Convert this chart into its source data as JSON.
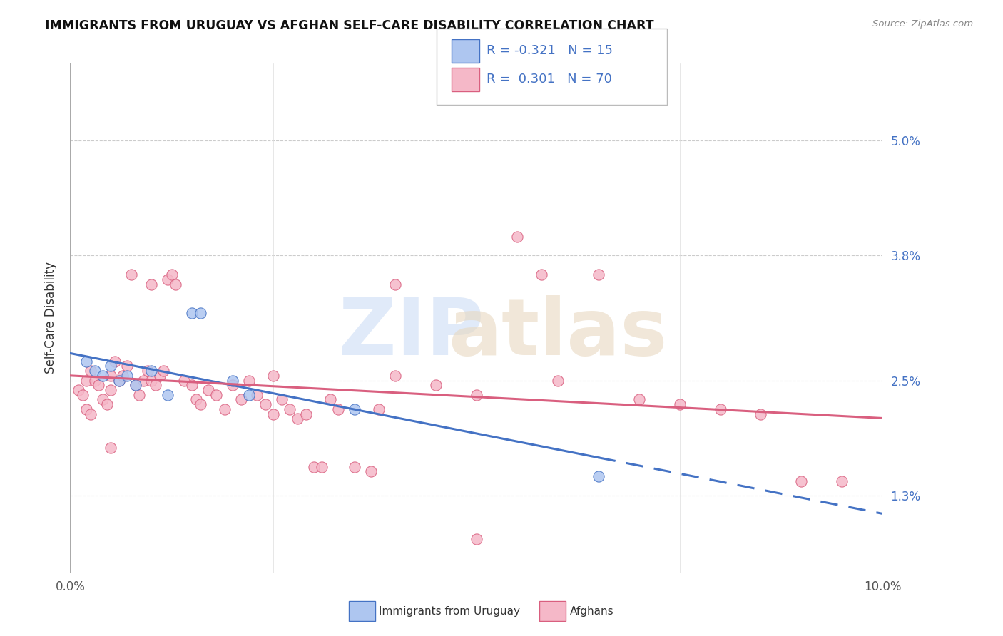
{
  "title": "IMMIGRANTS FROM URUGUAY VS AFGHAN SELF-CARE DISABILITY CORRELATION CHART",
  "source": "Source: ZipAtlas.com",
  "ylabel": "Self-Care Disability",
  "y_tick_vals": [
    1.3,
    2.5,
    3.8,
    5.0
  ],
  "y_tick_labels": [
    "1.3%",
    "2.5%",
    "3.8%",
    "5.0%"
  ],
  "xlim": [
    0.0,
    10.0
  ],
  "ylim": [
    0.5,
    5.8
  ],
  "blue_color": "#aec6f0",
  "pink_color": "#f5b8c8",
  "blue_line_color": "#4472c4",
  "pink_line_color": "#d95f7f",
  "text_color_blue": "#4472c4",
  "grid_color": "#cccccc",
  "blue_scatter": [
    [
      0.2,
      2.7
    ],
    [
      0.3,
      2.6
    ],
    [
      0.4,
      2.55
    ],
    [
      0.5,
      2.65
    ],
    [
      0.6,
      2.5
    ],
    [
      0.7,
      2.55
    ],
    [
      0.8,
      2.45
    ],
    [
      1.0,
      2.6
    ],
    [
      1.2,
      2.35
    ],
    [
      1.5,
      3.2
    ],
    [
      1.6,
      3.2
    ],
    [
      2.0,
      2.5
    ],
    [
      2.2,
      2.35
    ],
    [
      3.5,
      2.2
    ],
    [
      6.5,
      1.5
    ]
  ],
  "pink_scatter": [
    [
      0.1,
      2.4
    ],
    [
      0.15,
      2.35
    ],
    [
      0.2,
      2.2
    ],
    [
      0.2,
      2.5
    ],
    [
      0.25,
      2.6
    ],
    [
      0.25,
      2.15
    ],
    [
      0.3,
      2.5
    ],
    [
      0.35,
      2.45
    ],
    [
      0.4,
      2.3
    ],
    [
      0.45,
      2.25
    ],
    [
      0.5,
      2.55
    ],
    [
      0.5,
      2.4
    ],
    [
      0.55,
      2.7
    ],
    [
      0.6,
      2.5
    ],
    [
      0.65,
      2.55
    ],
    [
      0.7,
      2.65
    ],
    [
      0.75,
      3.6
    ],
    [
      0.8,
      2.45
    ],
    [
      0.85,
      2.35
    ],
    [
      0.9,
      2.5
    ],
    [
      0.95,
      2.6
    ],
    [
      1.0,
      2.5
    ],
    [
      1.05,
      2.45
    ],
    [
      1.1,
      2.55
    ],
    [
      1.15,
      2.6
    ],
    [
      1.2,
      3.55
    ],
    [
      1.25,
      3.6
    ],
    [
      1.3,
      3.5
    ],
    [
      1.4,
      2.5
    ],
    [
      1.5,
      2.45
    ],
    [
      1.55,
      2.3
    ],
    [
      1.6,
      2.25
    ],
    [
      1.7,
      2.4
    ],
    [
      1.8,
      2.35
    ],
    [
      1.9,
      2.2
    ],
    [
      2.0,
      2.45
    ],
    [
      2.1,
      2.3
    ],
    [
      2.2,
      2.5
    ],
    [
      2.3,
      2.35
    ],
    [
      2.4,
      2.25
    ],
    [
      2.5,
      2.15
    ],
    [
      2.6,
      2.3
    ],
    [
      2.7,
      2.2
    ],
    [
      2.8,
      2.1
    ],
    [
      2.9,
      2.15
    ],
    [
      3.0,
      1.6
    ],
    [
      3.1,
      1.6
    ],
    [
      3.2,
      2.3
    ],
    [
      3.3,
      2.2
    ],
    [
      3.5,
      1.6
    ],
    [
      3.7,
      1.55
    ],
    [
      3.8,
      2.2
    ],
    [
      4.0,
      2.55
    ],
    [
      4.5,
      2.45
    ],
    [
      5.0,
      2.35
    ],
    [
      5.5,
      4.0
    ],
    [
      5.8,
      3.6
    ],
    [
      6.0,
      2.5
    ],
    [
      6.5,
      3.6
    ],
    [
      7.0,
      2.3
    ],
    [
      7.5,
      2.25
    ],
    [
      8.0,
      2.2
    ],
    [
      8.5,
      2.15
    ],
    [
      9.0,
      1.45
    ],
    [
      9.5,
      1.45
    ],
    [
      1.0,
      3.5
    ],
    [
      2.5,
      2.55
    ],
    [
      4.0,
      3.5
    ],
    [
      5.0,
      0.85
    ],
    [
      0.5,
      1.8
    ]
  ]
}
